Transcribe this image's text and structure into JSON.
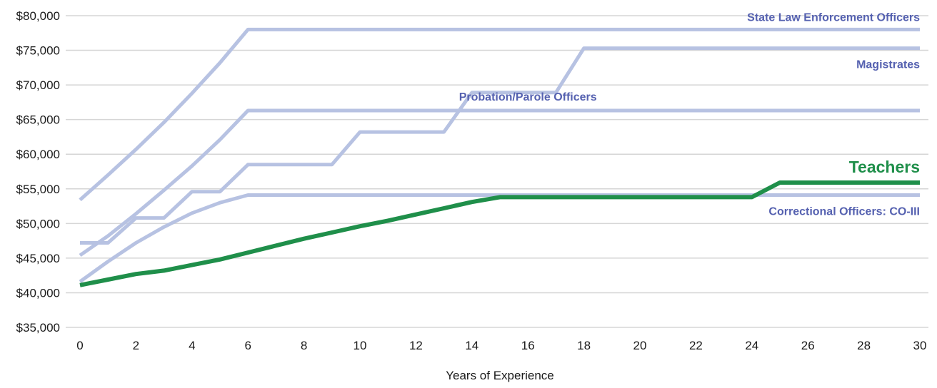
{
  "chart_data": {
    "type": "line",
    "title": "",
    "xlabel": "Years of Experience",
    "ylabel": "",
    "xlim": [
      0,
      30
    ],
    "ylim": [
      35000,
      80000
    ],
    "x_ticks": [
      0,
      2,
      4,
      6,
      8,
      10,
      12,
      14,
      16,
      18,
      20,
      22,
      24,
      26,
      28,
      30
    ],
    "y_ticks": [
      35000,
      40000,
      45000,
      50000,
      55000,
      60000,
      65000,
      70000,
      75000,
      80000
    ],
    "y_tick_labels": [
      "$35,000",
      "$40,000",
      "$45,000",
      "$50,000",
      "$55,000",
      "$60,000",
      "$65,000",
      "$70,000",
      "$75,000",
      "$80,000"
    ],
    "grid": "horizontal",
    "series": [
      {
        "name": "State Law Enforcement Officers",
        "color": "#b7c2e2",
        "label_color": "#5561b0",
        "label_anchor": "top-right",
        "points": [
          [
            0,
            53400
          ],
          [
            1,
            57000
          ],
          [
            2,
            60700
          ],
          [
            3,
            64600
          ],
          [
            4,
            68800
          ],
          [
            5,
            73200
          ],
          [
            6,
            78000
          ],
          [
            30,
            78000
          ]
        ]
      },
      {
        "name": "Magistrates",
        "color": "#b7c2e2",
        "label_color": "#5561b0",
        "label_anchor": "right-below",
        "points": [
          [
            0,
            47200
          ],
          [
            1,
            47200
          ],
          [
            2,
            50800
          ],
          [
            3,
            50800
          ],
          [
            4,
            54600
          ],
          [
            5,
            54600
          ],
          [
            6,
            58500
          ],
          [
            9,
            58500
          ],
          [
            10,
            63200
          ],
          [
            13,
            63200
          ],
          [
            14,
            68900
          ],
          [
            17,
            68900
          ],
          [
            18,
            75300
          ],
          [
            30,
            75300
          ]
        ]
      },
      {
        "name": "Probation/Parole Officers",
        "color": "#b7c2e2",
        "label_color": "#5561b0",
        "label_anchor": "middle-above",
        "points": [
          [
            0,
            45400
          ],
          [
            1,
            48200
          ],
          [
            2,
            51400
          ],
          [
            3,
            54800
          ],
          [
            4,
            58300
          ],
          [
            5,
            62100
          ],
          [
            6,
            66300
          ],
          [
            30,
            66300
          ]
        ]
      },
      {
        "name": "Correctional Officers: CO-III",
        "color": "#b7c2e2",
        "label_color": "#5561b0",
        "label_anchor": "right-below",
        "points": [
          [
            0,
            41600
          ],
          [
            1,
            44500
          ],
          [
            2,
            47200
          ],
          [
            3,
            49500
          ],
          [
            4,
            51500
          ],
          [
            5,
            53000
          ],
          [
            6,
            54100
          ],
          [
            30,
            54100
          ]
        ]
      },
      {
        "name": "Teachers",
        "color": "#1f8f4a",
        "label_color": "#1f8f4a",
        "label_anchor": "right-above",
        "emphasis": true,
        "points": [
          [
            0,
            41100
          ],
          [
            1,
            41900
          ],
          [
            2,
            42700
          ],
          [
            3,
            43200
          ],
          [
            4,
            44000
          ],
          [
            5,
            44800
          ],
          [
            6,
            45800
          ],
          [
            7,
            46800
          ],
          [
            8,
            47800
          ],
          [
            9,
            48700
          ],
          [
            10,
            49600
          ],
          [
            11,
            50400
          ],
          [
            12,
            51300
          ],
          [
            13,
            52200
          ],
          [
            14,
            53100
          ],
          [
            15,
            53800
          ],
          [
            24,
            53800
          ],
          [
            25,
            55900
          ],
          [
            30,
            55900
          ]
        ]
      }
    ]
  }
}
